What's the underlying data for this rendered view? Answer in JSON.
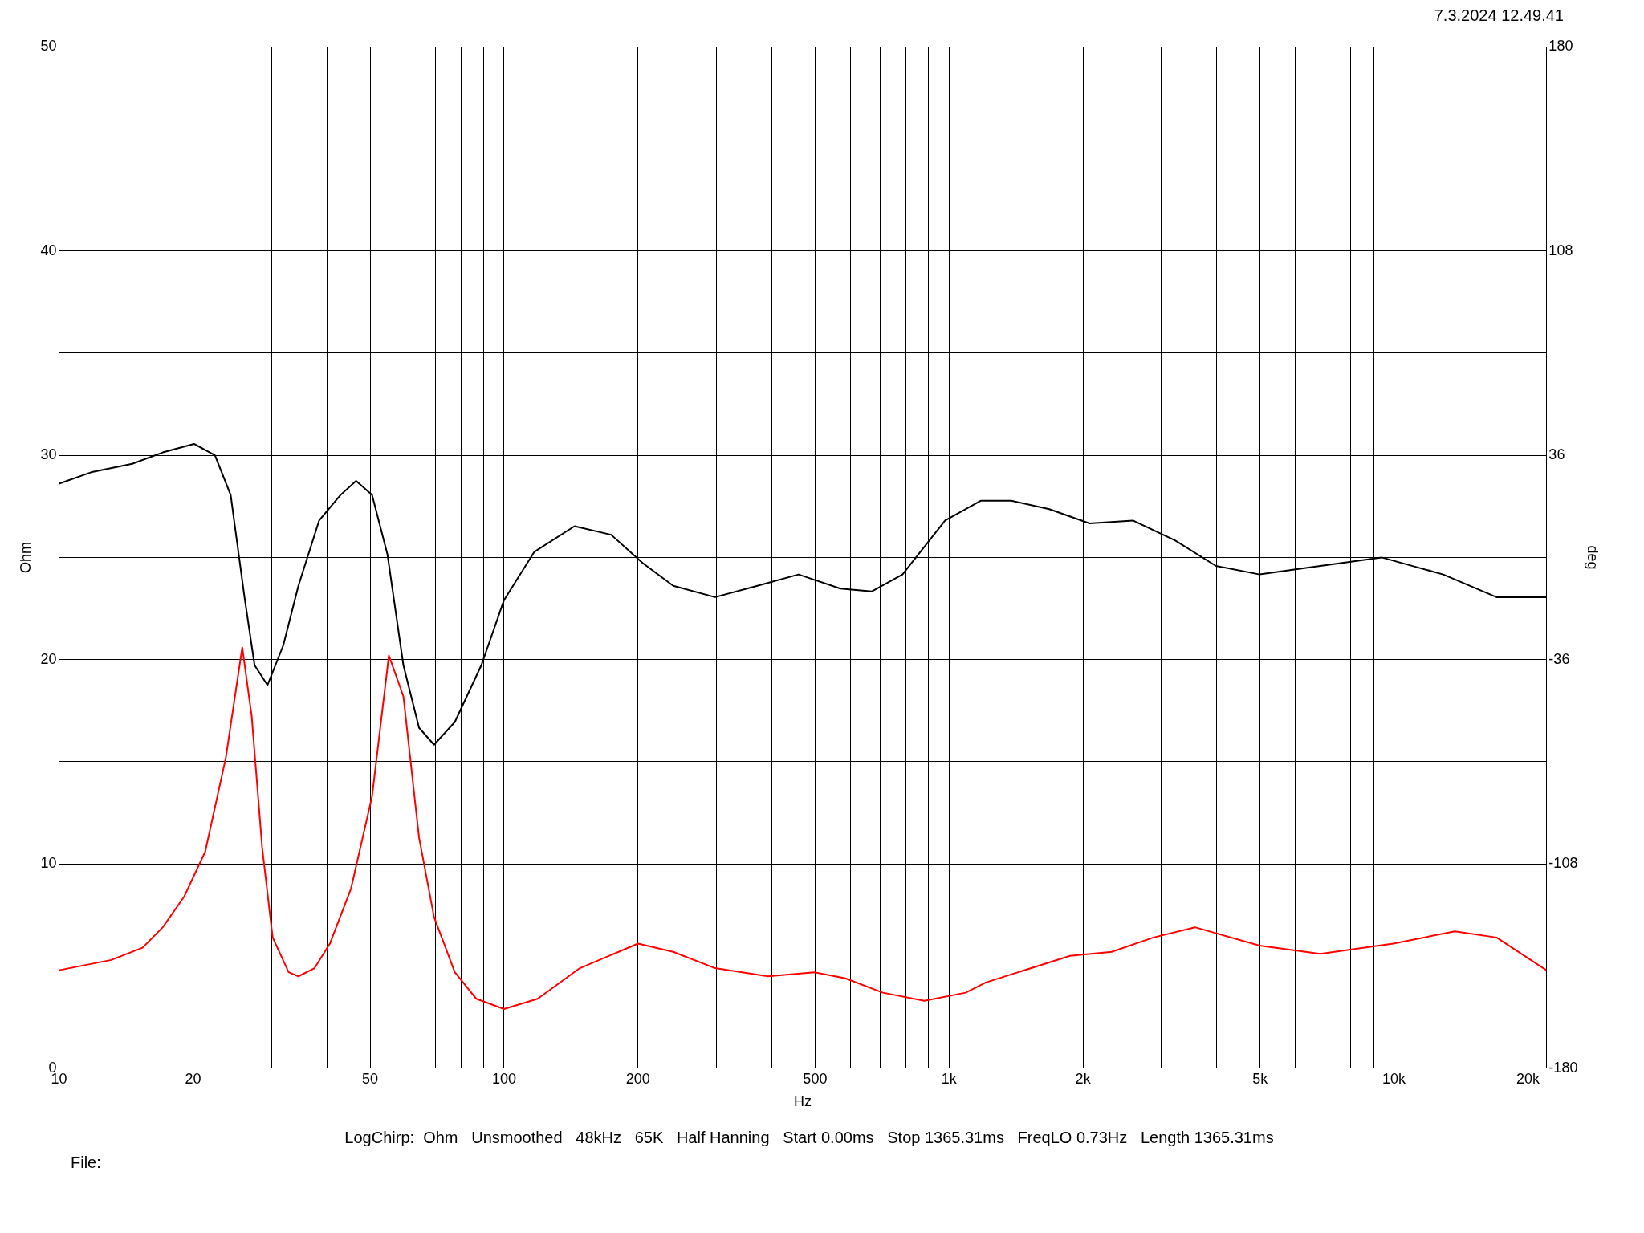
{
  "chart_data": {
    "type": "line",
    "xlabel": "Hz",
    "ylabel": "Ohm",
    "y2label": "deg",
    "log": "x",
    "grid": true,
    "legend": false,
    "marker": "none",
    "line_style": "solid",
    "xlim": [
      10,
      22000
    ],
    "xticks": [
      10,
      20,
      {
        "value": 30,
        "label": null
      },
      {
        "value": 40,
        "label": null
      },
      50,
      {
        "value": 60,
        "label": null
      },
      {
        "value": 70,
        "label": null
      },
      {
        "value": 80,
        "label": null
      },
      {
        "value": 90,
        "label": null
      },
      100,
      200,
      {
        "value": 300,
        "label": null
      },
      {
        "value": 400,
        "label": null
      },
      500,
      {
        "value": 600,
        "label": null
      },
      {
        "value": 700,
        "label": null
      },
      {
        "value": 800,
        "label": null
      },
      {
        "value": 900,
        "label": null
      },
      {
        "value": 1000,
        "label": "1k"
      },
      {
        "value": 2000,
        "label": "2k"
      },
      {
        "value": 3000,
        "label": null
      },
      {
        "value": 4000,
        "label": null
      },
      {
        "value": 5000,
        "label": "5k"
      },
      {
        "value": 6000,
        "label": null
      },
      {
        "value": 7000,
        "label": null
      },
      {
        "value": 8000,
        "label": null
      },
      {
        "value": 9000,
        "label": null
      },
      {
        "value": 10000,
        "label": "10k"
      },
      {
        "value": 20000,
        "label": "20k"
      }
    ],
    "ylim": [
      0,
      50
    ],
    "yticks": [
      0,
      {
        "value": 5,
        "label": null
      },
      10,
      {
        "value": 15,
        "label": null
      },
      20,
      {
        "value": 25,
        "label": null
      },
      30,
      {
        "value": 35,
        "label": null
      },
      40,
      {
        "value": 45,
        "label": null
      },
      50
    ],
    "y2lim": [
      -180,
      180
    ],
    "y2ticks": [
      -180,
      -108,
      -36,
      36,
      108,
      180
    ],
    "series": [
      {
        "color": "#ff0000",
        "x": [
          10,
          13.1,
          15.4,
          17.1,
          19.1,
          21.3,
          23.7,
          25.8,
          27.1,
          28.6,
          30.2,
          32.8,
          34.5,
          37.5,
          40.6,
          45.3,
          50.5,
          55.1,
          59.4,
          64.4,
          69.6,
          77.5,
          86.6,
          100,
          119,
          148,
          200,
          240,
          298,
          392,
          498,
          585,
          710,
          880,
          1090,
          1210,
          1430,
          1870,
          2320,
          2880,
          3570,
          4990,
          6830,
          9960,
          13700,
          17000,
          22000
        ],
        "values": [
          4.8,
          5.3,
          5.9,
          6.9,
          8.4,
          10.6,
          15.2,
          20.6,
          17.2,
          10.8,
          6.4,
          4.7,
          4.5,
          4.9,
          6.1,
          8.8,
          13.3,
          20.2,
          18.2,
          11.3,
          7.4,
          4.7,
          3.4,
          2.9,
          3.4,
          4.9,
          6.1,
          5.7,
          4.9,
          4.5,
          4.7,
          4.4,
          3.7,
          3.3,
          3.7,
          4.2,
          4.7,
          5.5,
          5.7,
          6.4,
          6.9,
          6.0,
          5.6,
          6.1,
          6.7,
          6.4,
          4.8
        ]
      },
      {
        "color": "#000000",
        "axis": "y2",
        "x": [
          10,
          11.8,
          14.6,
          17.1,
          20.1,
          22.4,
          24.3,
          26.1,
          27.5,
          29.4,
          31.9,
          34.5,
          38.4,
          42.9,
          46.5,
          50.5,
          54.7,
          59.4,
          64.4,
          69.6,
          77.5,
          88.9,
          100,
          117,
          144,
          174,
          205,
          240,
          298,
          371,
          459,
          570,
          670,
          786,
          980,
          1180,
          1380,
          1680,
          2070,
          2590,
          3220,
          3980,
          4990,
          6830,
          9380,
          12900,
          17000,
          22000
        ],
        "values": [
          26,
          30,
          33,
          37,
          40,
          36,
          22,
          -14,
          -38,
          -45,
          -31,
          -10,
          13,
          22,
          27,
          22,
          1,
          -38,
          -60,
          -66,
          -58,
          -38,
          -15,
          2,
          11,
          8,
          -2,
          -10,
          -14,
          -10,
          -6,
          -11,
          -12,
          -6,
          13,
          20,
          20,
          17,
          12,
          13,
          6,
          -3,
          -6,
          -3,
          0,
          -6,
          -14,
          -14
        ]
      }
    ],
    "annotations": [
      "7.3.2024 12.49.41",
      "LogChirp:  Ohm   Unsmoothed   48kHz   65K   Half Hanning   Start 0.00ms   Stop 1365.31ms   FreqLO 0.73Hz   Length 1365.31ms",
      "File:"
    ]
  }
}
